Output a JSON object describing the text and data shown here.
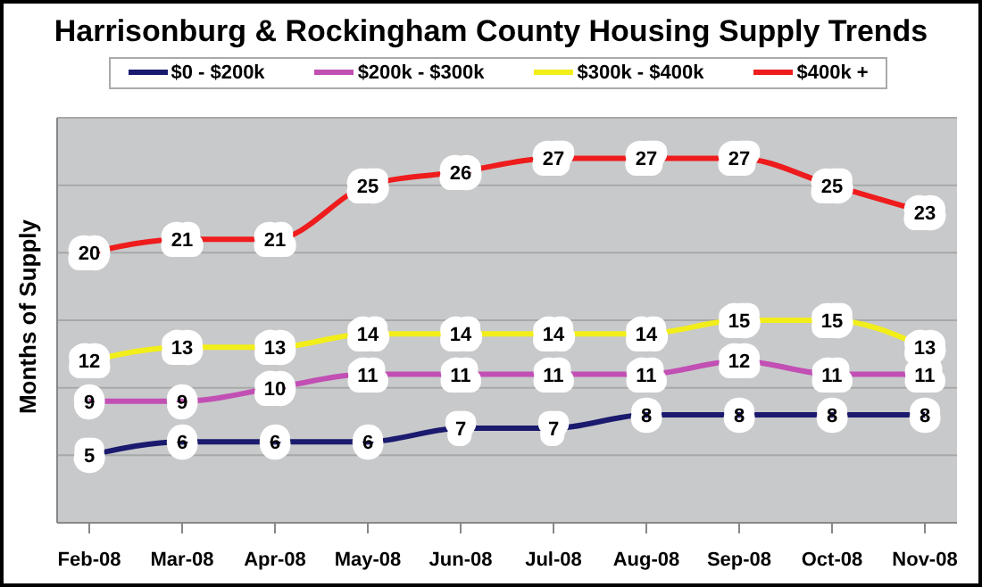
{
  "chart_data": {
    "type": "line",
    "title": "Harrisonburg & Rockingham County Housing Supply Trends",
    "ylabel": "Months of Supply",
    "categories": [
      "Feb-08",
      "Mar-08",
      "Apr-08",
      "May-08",
      "Jun-08",
      "Jul-08",
      "Aug-08",
      "Sep-08",
      "Oct-08",
      "Nov-08"
    ],
    "series": [
      {
        "name": "$0 - $200k",
        "color": "#1a1a6e",
        "values": [
          5,
          6,
          6,
          6,
          7,
          7,
          8,
          8,
          8,
          8
        ]
      },
      {
        "name": "$200k - $300k",
        "color": "#c24fb4",
        "values": [
          9,
          9,
          10,
          11,
          11,
          11,
          11,
          12,
          11,
          11
        ]
      },
      {
        "name": "$300k - $400k",
        "color": "#f2ee1a",
        "values": [
          12,
          13,
          13,
          14,
          14,
          14,
          14,
          15,
          15,
          13
        ]
      },
      {
        "name": "$400k +",
        "color": "#ee1c1c",
        "values": [
          20,
          21,
          21,
          25,
          26,
          27,
          27,
          27,
          25,
          23
        ]
      }
    ],
    "ylim": [
      0,
      30
    ],
    "yticks": [
      {
        "value": 0,
        "label": null
      },
      {
        "value": 5,
        "label": null
      },
      {
        "value": 10,
        "label": null
      },
      {
        "value": 15,
        "label": null
      },
      {
        "value": 20,
        "label": null
      },
      {
        "value": 25,
        "label": null
      },
      {
        "value": 30,
        "label": null
      }
    ],
    "tick_labels": "x",
    "grid": "y",
    "legend": "top",
    "data_labels": true,
    "marker": "none",
    "line_style": "solid"
  }
}
